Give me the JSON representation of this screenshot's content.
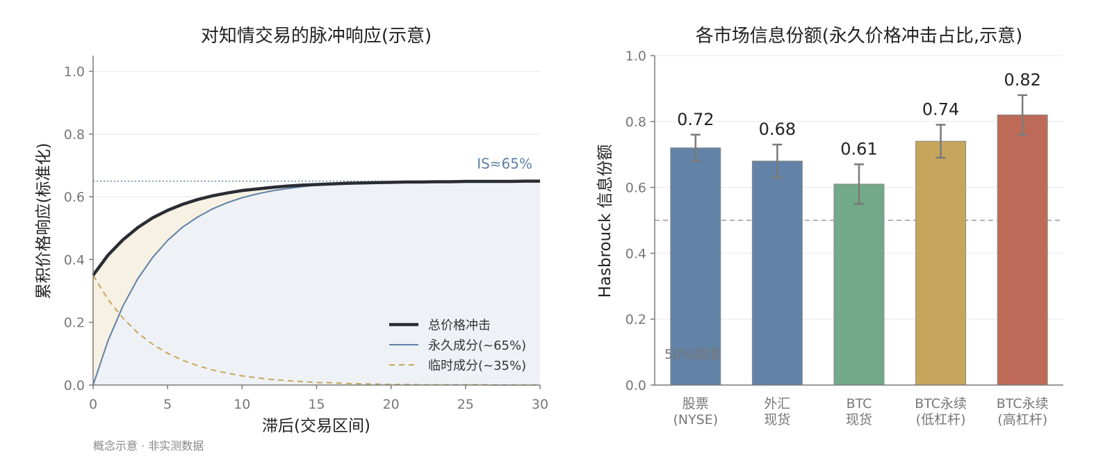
{
  "footnote": "概念示意 · 非实测数据",
  "colors": {
    "total": "#2a2c33",
    "permanent": "#5f80a6",
    "temporary": "#c9a55a",
    "perm_fill": "#eef2f7",
    "gap_fill": "#f6f1e3",
    "is_line": "#5f80a6",
    "grid": "#e8e8e8",
    "axis": "#7a7a7a",
    "error": "#7a7a7a",
    "ref_line": "#9a9a9a"
  },
  "chart_data": [
    {
      "type": "line",
      "title": "对知情交易的脉冲响应(示意)",
      "xlabel": "滞后(交易区间)",
      "ylabel": "累积价格响应(标准化)",
      "xlim": [
        0,
        30
      ],
      "ylim": [
        0,
        1.05
      ],
      "xticks": [
        0,
        5,
        10,
        15,
        20,
        25,
        30
      ],
      "yticks": [
        0.0,
        0.2,
        0.4,
        0.6,
        0.8,
        1.0
      ],
      "ytick_labels": [
        "0.0",
        "0.2",
        "0.4",
        "0.6",
        "0.8",
        "1.0"
      ],
      "grid": true,
      "legend_position": "bottom-right",
      "x": [
        0,
        1,
        2,
        3,
        4,
        5,
        6,
        7,
        8,
        9,
        10,
        11,
        12,
        13,
        14,
        15,
        16,
        17,
        18,
        19,
        20,
        21,
        22,
        23,
        24,
        25,
        26,
        27,
        28,
        29,
        30
      ],
      "series": [
        {
          "name": "总价格冲击",
          "style": "solid-thick",
          "values": [
            0.35,
            0.414,
            0.463,
            0.502,
            0.533,
            0.557,
            0.576,
            0.591,
            0.603,
            0.612,
            0.62,
            0.625,
            0.63,
            0.634,
            0.637,
            0.639,
            0.641,
            0.643,
            0.644,
            0.645,
            0.646,
            0.647,
            0.647,
            0.648,
            0.648,
            0.649,
            0.649,
            0.649,
            0.649,
            0.65,
            0.65
          ]
        },
        {
          "name": "永久成分(~65%)",
          "style": "solid",
          "values": [
            0.0,
            0.141,
            0.252,
            0.339,
            0.407,
            0.461,
            0.503,
            0.535,
            0.561,
            0.581,
            0.597,
            0.609,
            0.619,
            0.626,
            0.632,
            0.637,
            0.64,
            0.643,
            0.645,
            0.646,
            0.647,
            0.648,
            0.649,
            0.649,
            0.649,
            0.65,
            0.65,
            0.65,
            0.65,
            0.65,
            0.65
          ]
        },
        {
          "name": "临时成分(~35%)",
          "style": "dashed",
          "values": [
            0.35,
            0.273,
            0.213,
            0.166,
            0.13,
            0.101,
            0.079,
            0.062,
            0.048,
            0.038,
            0.029,
            0.023,
            0.018,
            0.014,
            0.011,
            0.008,
            0.007,
            0.005,
            0.004,
            0.003,
            0.002,
            0.002,
            0.001,
            0.001,
            0.001,
            0.001,
            0.001,
            0.0,
            0.0,
            0.0,
            0.0
          ]
        }
      ],
      "reference_line": {
        "y": 0.65,
        "label": "IS≈65%"
      }
    },
    {
      "type": "bar",
      "title": "各市场信息份额(永久价格冲击占比,示意)",
      "xlabel": "",
      "ylabel": "Hasbrouck 信息份额",
      "ylim": [
        0,
        1.0
      ],
      "yticks": [
        0.0,
        0.2,
        0.4,
        0.6,
        0.8,
        1.0
      ],
      "ytick_labels": [
        "0.0",
        "0.2",
        "0.4",
        "0.6",
        "0.8",
        "1.0"
      ],
      "grid": true,
      "categories": [
        [
          "股票",
          "(NYSE)"
        ],
        [
          "外汇",
          "现货"
        ],
        [
          "BTC",
          "现货"
        ],
        [
          "BTC永续",
          "(低杠杆)"
        ],
        [
          "BTC永续",
          "(高杠杆)"
        ]
      ],
      "values": [
        0.72,
        0.68,
        0.61,
        0.74,
        0.82
      ],
      "value_labels": [
        "0.72",
        "0.68",
        "0.61",
        "0.74",
        "0.82"
      ],
      "error_low": [
        0.68,
        0.63,
        0.55,
        0.69,
        0.76
      ],
      "error_high": [
        0.76,
        0.73,
        0.67,
        0.79,
        0.88
      ],
      "bar_colors": [
        "#6283a7",
        "#6283a7",
        "#72a989",
        "#c6a55c",
        "#bd6b58"
      ],
      "reference_line": {
        "y": 0.5,
        "label": "50%阈值"
      }
    }
  ]
}
